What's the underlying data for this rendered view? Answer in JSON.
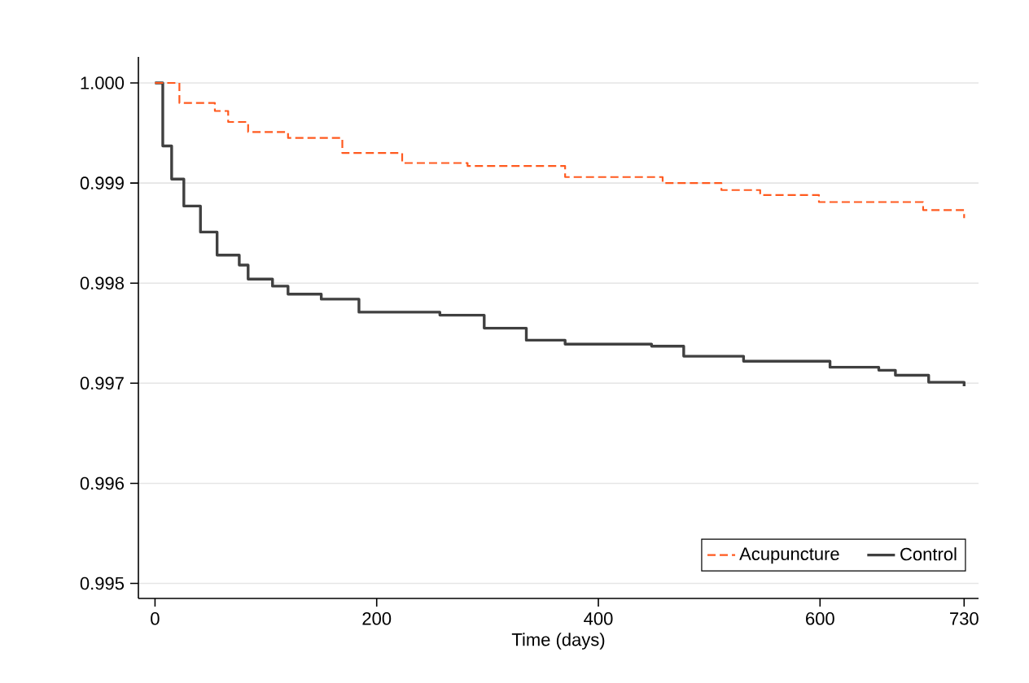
{
  "chart_data": {
    "type": "step",
    "xlabel": "Time (days)",
    "xlim": [
      -15,
      743
    ],
    "ylim": [
      0.99485,
      1.00026
    ],
    "xticks": [
      0,
      200,
      400,
      600,
      730
    ],
    "yticks": [
      {
        "value": 0.995,
        "label": "0.995"
      },
      {
        "value": 0.996,
        "label": "0.996"
      },
      {
        "value": 0.997,
        "label": "0.997"
      },
      {
        "value": 0.998,
        "label": "0.998"
      },
      {
        "value": 0.999,
        "label": "0.999"
      },
      {
        "value": 1.0,
        "label": "1.000"
      }
    ],
    "grid": "y",
    "legend": "bottom right",
    "series": [
      {
        "name": "Acupuncture",
        "color": "#ff5a1f",
        "line_style": "dashed",
        "x": [
          0,
          22,
          54,
          66,
          84,
          120,
          169,
          223,
          282,
          370,
          458,
          511,
          546,
          599,
          664,
          693,
          730
        ],
        "values": [
          1.0,
          0.9998,
          0.99972,
          0.99961,
          0.99951,
          0.99945,
          0.9993,
          0.9992,
          0.99917,
          0.99906,
          0.999,
          0.99893,
          0.99888,
          0.99881,
          0.99881,
          0.99873,
          0.99865
        ]
      },
      {
        "name": "Control",
        "color": "#404040",
        "line_style": "solid",
        "x": [
          0,
          7,
          15,
          26,
          41,
          56,
          76,
          84,
          106,
          120,
          150,
          184,
          257,
          297,
          335,
          370,
          448,
          477,
          531,
          605,
          609,
          653,
          668,
          698,
          730
        ],
        "values": [
          1.0,
          0.99937,
          0.99904,
          0.99877,
          0.99851,
          0.99828,
          0.99818,
          0.99804,
          0.99797,
          0.99789,
          0.99784,
          0.99771,
          0.99768,
          0.99755,
          0.99743,
          0.99739,
          0.99737,
          0.99727,
          0.99722,
          0.99722,
          0.99716,
          0.99713,
          0.99708,
          0.99701,
          0.99697
        ]
      }
    ]
  }
}
